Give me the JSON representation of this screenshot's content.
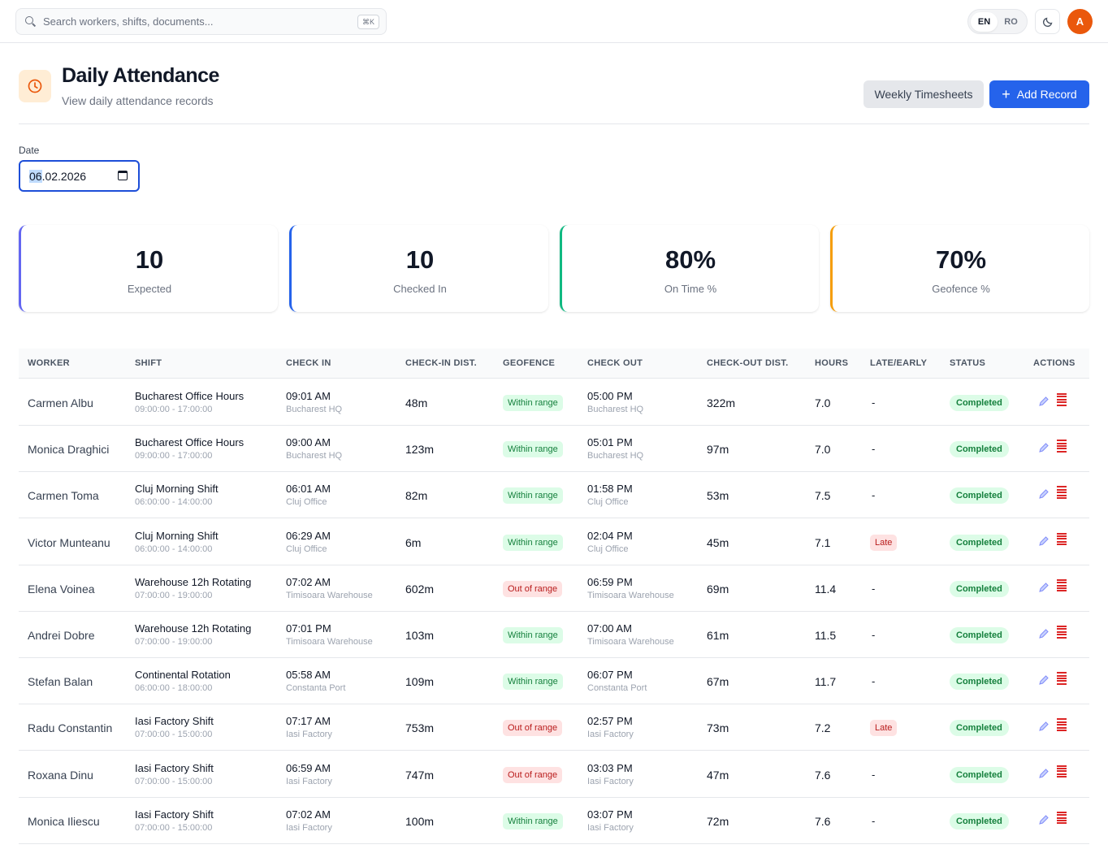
{
  "search": {
    "placeholder": "Search workers, shifts, documents...",
    "shortcut": "⌘K"
  },
  "lang": {
    "en": "EN",
    "ro": "RO"
  },
  "user": {
    "initial": "A"
  },
  "page": {
    "title": "Daily Attendance",
    "subtitle": "View daily attendance records"
  },
  "actions": {
    "weekly": "Weekly Timesheets",
    "add": "Add Record"
  },
  "date": {
    "label": "Date",
    "day": "06",
    "rest": ".02.2026"
  },
  "stats": [
    {
      "value": "10",
      "label": "Expected",
      "color": "#6366f1"
    },
    {
      "value": "10",
      "label": "Checked In",
      "color": "#2563eb"
    },
    {
      "value": "80%",
      "label": "On Time %",
      "color": "#10b981"
    },
    {
      "value": "70%",
      "label": "Geofence %",
      "color": "#f59e0b"
    }
  ],
  "columns": [
    "WORKER",
    "SHIFT",
    "CHECK IN",
    "CHECK-IN DIST.",
    "GEOFENCE",
    "CHECK OUT",
    "CHECK-OUT DIST.",
    "HOURS",
    "LATE/EARLY",
    "STATUS",
    "ACTIONS"
  ],
  "rows": [
    {
      "worker": "Carmen Albu",
      "shift": "Bucharest Office Hours",
      "shift_time": "09:00:00 - 17:00:00",
      "check_in": "09:01 AM",
      "in_loc": "Bucharest HQ",
      "in_dist": "48m",
      "geofence": "Within range",
      "geo_ok": true,
      "check_out": "05:00 PM",
      "out_loc": "Bucharest HQ",
      "out_dist": "322m",
      "hours": "7.0",
      "late": "-",
      "status": "Completed"
    },
    {
      "worker": "Monica Draghici",
      "shift": "Bucharest Office Hours",
      "shift_time": "09:00:00 - 17:00:00",
      "check_in": "09:00 AM",
      "in_loc": "Bucharest HQ",
      "in_dist": "123m",
      "geofence": "Within range",
      "geo_ok": true,
      "check_out": "05:01 PM",
      "out_loc": "Bucharest HQ",
      "out_dist": "97m",
      "hours": "7.0",
      "late": "-",
      "status": "Completed"
    },
    {
      "worker": "Carmen Toma",
      "shift": "Cluj Morning Shift",
      "shift_time": "06:00:00 - 14:00:00",
      "check_in": "06:01 AM",
      "in_loc": "Cluj Office",
      "in_dist": "82m",
      "geofence": "Within range",
      "geo_ok": true,
      "check_out": "01:58 PM",
      "out_loc": "Cluj Office",
      "out_dist": "53m",
      "hours": "7.5",
      "late": "-",
      "status": "Completed"
    },
    {
      "worker": "Victor Munteanu",
      "shift": "Cluj Morning Shift",
      "shift_time": "06:00:00 - 14:00:00",
      "check_in": "06:29 AM",
      "in_loc": "Cluj Office",
      "in_dist": "6m",
      "geofence": "Within range",
      "geo_ok": true,
      "check_out": "02:04 PM",
      "out_loc": "Cluj Office",
      "out_dist": "45m",
      "hours": "7.1",
      "late": "Late",
      "status": "Completed"
    },
    {
      "worker": "Elena Voinea",
      "shift": "Warehouse 12h Rotating",
      "shift_time": "07:00:00 - 19:00:00",
      "check_in": "07:02 AM",
      "in_loc": "Timisoara Warehouse",
      "in_dist": "602m",
      "geofence": "Out of range",
      "geo_ok": false,
      "check_out": "06:59 PM",
      "out_loc": "Timisoara Warehouse",
      "out_dist": "69m",
      "hours": "11.4",
      "late": "-",
      "status": "Completed"
    },
    {
      "worker": "Andrei Dobre",
      "shift": "Warehouse 12h Rotating",
      "shift_time": "07:00:00 - 19:00:00",
      "check_in": "07:01 PM",
      "in_loc": "Timisoara Warehouse",
      "in_dist": "103m",
      "geofence": "Within range",
      "geo_ok": true,
      "check_out": "07:00 AM",
      "out_loc": "Timisoara Warehouse",
      "out_dist": "61m",
      "hours": "11.5",
      "late": "-",
      "status": "Completed"
    },
    {
      "worker": "Stefan Balan",
      "shift": "Continental Rotation",
      "shift_time": "06:00:00 - 18:00:00",
      "check_in": "05:58 AM",
      "in_loc": "Constanta Port",
      "in_dist": "109m",
      "geofence": "Within range",
      "geo_ok": true,
      "check_out": "06:07 PM",
      "out_loc": "Constanta Port",
      "out_dist": "67m",
      "hours": "11.7",
      "late": "-",
      "status": "Completed"
    },
    {
      "worker": "Radu Constantin",
      "shift": "Iasi Factory Shift",
      "shift_time": "07:00:00 - 15:00:00",
      "check_in": "07:17 AM",
      "in_loc": "Iasi Factory",
      "in_dist": "753m",
      "geofence": "Out of range",
      "geo_ok": false,
      "check_out": "02:57 PM",
      "out_loc": "Iasi Factory",
      "out_dist": "73m",
      "hours": "7.2",
      "late": "Late",
      "status": "Completed"
    },
    {
      "worker": "Roxana Dinu",
      "shift": "Iasi Factory Shift",
      "shift_time": "07:00:00 - 15:00:00",
      "check_in": "06:59 AM",
      "in_loc": "Iasi Factory",
      "in_dist": "747m",
      "geofence": "Out of range",
      "geo_ok": false,
      "check_out": "03:03 PM",
      "out_loc": "Iasi Factory",
      "out_dist": "47m",
      "hours": "7.6",
      "late": "-",
      "status": "Completed"
    },
    {
      "worker": "Monica Iliescu",
      "shift": "Iasi Factory Shift",
      "shift_time": "07:00:00 - 15:00:00",
      "check_in": "07:02 AM",
      "in_loc": "Iasi Factory",
      "in_dist": "100m",
      "geofence": "Within range",
      "geo_ok": true,
      "check_out": "03:07 PM",
      "out_loc": "Iasi Factory",
      "out_dist": "72m",
      "hours": "7.6",
      "late": "-",
      "status": "Completed"
    }
  ]
}
